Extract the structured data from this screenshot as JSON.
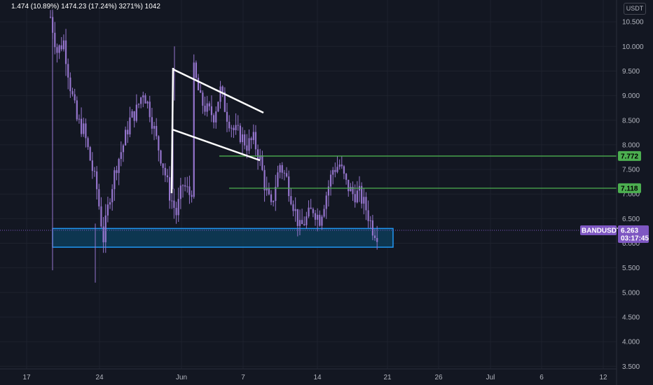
{
  "header": {
    "ohlc_text": "1.474 (10.89%) 1474.23 (17.24%) 3271%) 1042"
  },
  "currency_label": "USDT",
  "colors": {
    "background": "#131722",
    "candle": "#9575cd",
    "hline": "#4caf50",
    "box_stroke": "#2196f3",
    "box_fill": "#0d3c58",
    "pattern": "#ffffff",
    "price_tag": "#7e57c2"
  },
  "y_axis": {
    "labels": [
      "10.500",
      "10.000",
      "9.500",
      "9.000",
      "8.500",
      "8.000",
      "7.500",
      "7.000",
      "6.500",
      "6.000",
      "5.500",
      "5.000",
      "4.500",
      "4.000",
      "3.500"
    ]
  },
  "x_axis": {
    "labels": [
      "17",
      "24",
      "Jun",
      "7",
      "14",
      "21",
      "26",
      "Jul",
      "6",
      "12"
    ]
  },
  "hlines": [
    {
      "price": "7.772",
      "from_date": "Jun 5"
    },
    {
      "price": "7.118",
      "from_date": "Jun 5"
    }
  ],
  "support_zone": {
    "low": 5.92,
    "high": 6.3
  },
  "symbol_tag": {
    "symbol": "BANDUSDT",
    "price": "6.263",
    "countdown": "03:17:45"
  },
  "chart_data": {
    "type": "candlestick",
    "symbol": "BANDUSDT",
    "ylim": [
      3.5,
      10.75
    ],
    "last_price": 6.263,
    "horizontal_levels": [
      7.772,
      7.118
    ],
    "support_zone": [
      5.92,
      6.3
    ],
    "close_path": [
      [
        0,
        10.6
      ],
      [
        3,
        9.9
      ],
      [
        6,
        10.1
      ],
      [
        9,
        9.2
      ],
      [
        12,
        8.5
      ],
      [
        15,
        8.3
      ],
      [
        18,
        7.7
      ],
      [
        21,
        7.1
      ],
      [
        24,
        6.1
      ],
      [
        27,
        7.0
      ],
      [
        30,
        7.6
      ],
      [
        33,
        8.0
      ],
      [
        36,
        8.5
      ],
      [
        39,
        8.7
      ],
      [
        42,
        9.1
      ],
      [
        45,
        8.7
      ],
      [
        48,
        8.1
      ],
      [
        51,
        7.6
      ],
      [
        54,
        7.0
      ],
      [
        57,
        6.6
      ],
      [
        60,
        7.2
      ],
      [
        63,
        7.0
      ],
      [
        64,
        7.1
      ],
      [
        65,
        9.5
      ],
      [
        68,
        8.9
      ],
      [
        71,
        8.7
      ],
      [
        74,
        8.6
      ],
      [
        77,
        9.1
      ],
      [
        80,
        8.6
      ],
      [
        83,
        8.3
      ],
      [
        86,
        8.2
      ],
      [
        89,
        8.0
      ],
      [
        92,
        8.1
      ],
      [
        95,
        7.7
      ],
      [
        97,
        7.2
      ],
      [
        100,
        6.7
      ],
      [
        102,
        7.2
      ],
      [
        104,
        7.6
      ],
      [
        107,
        7.3
      ],
      [
        110,
        6.8
      ],
      [
        113,
        6.3
      ],
      [
        116,
        6.5
      ],
      [
        119,
        6.7
      ],
      [
        122,
        6.5
      ],
      [
        125,
        7.0
      ],
      [
        128,
        7.5
      ],
      [
        131,
        7.6
      ],
      [
        134,
        7.2
      ],
      [
        137,
        7.0
      ],
      [
        140,
        7.0
      ],
      [
        143,
        6.7
      ],
      [
        146,
        6.3
      ],
      [
        148,
        6.2
      ]
    ]
  }
}
